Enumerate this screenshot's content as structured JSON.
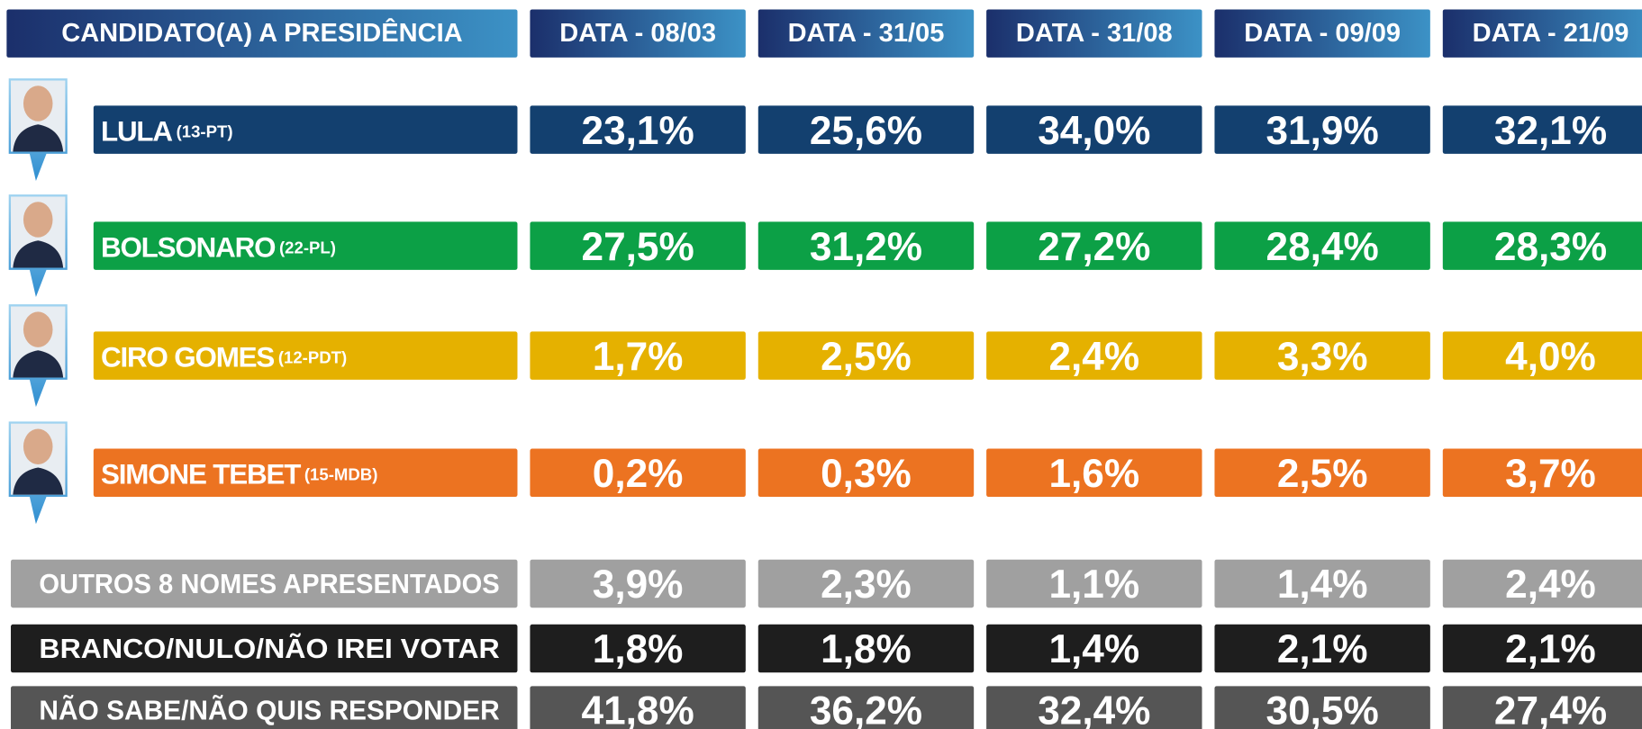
{
  "header": {
    "title": "CANDIDATO(A) A PRESIDÊNCIA",
    "dates": [
      "DATA - 08/03",
      "DATA - 31/05",
      "DATA - 31/08",
      "DATA - 09/09",
      "DATA - 21/09"
    ]
  },
  "candidates": [
    {
      "name": "LULA",
      "party": "(13-PT)",
      "color": "#13406f",
      "values": [
        "23,1%",
        "25,6%",
        "34,0%",
        "31,9%",
        "32,1%"
      ]
    },
    {
      "name": "BOLSONARO",
      "party": "(22-PL)",
      "color": "#0ca046",
      "values": [
        "27,5%",
        "31,2%",
        "27,2%",
        "28,4%",
        "28,3%"
      ]
    },
    {
      "name": "CIRO GOMES",
      "party": "(12-PDT)",
      "color": "#e5b100",
      "values": [
        "1,7%",
        "2,5%",
        "2,4%",
        "3,3%",
        "4,0%"
      ]
    },
    {
      "name": "SIMONE TEBET",
      "party": "(15-MDB)",
      "color": "#ec7321",
      "values": [
        "0,2%",
        "0,3%",
        "1,6%",
        "2,5%",
        "3,7%"
      ]
    }
  ],
  "others": [
    {
      "name": "OUTROS 8 NOMES APRESENTADOS",
      "color": "#a0a0a0",
      "values": [
        "3,9%",
        "2,3%",
        "1,1%",
        "1,4%",
        "2,4%"
      ]
    },
    {
      "name": "BRANCO/NULO/NÃO IREI VOTAR",
      "color": "#1e1e1e",
      "values": [
        "1,8%",
        "1,8%",
        "1,4%",
        "2,1%",
        "2,1%"
      ]
    },
    {
      "name": "NÃO SABE/NÃO QUIS RESPONDER",
      "color": "#555555",
      "values": [
        "41,8%",
        "36,2%",
        "32,4%",
        "30,5%",
        "27,4%"
      ]
    }
  ]
}
